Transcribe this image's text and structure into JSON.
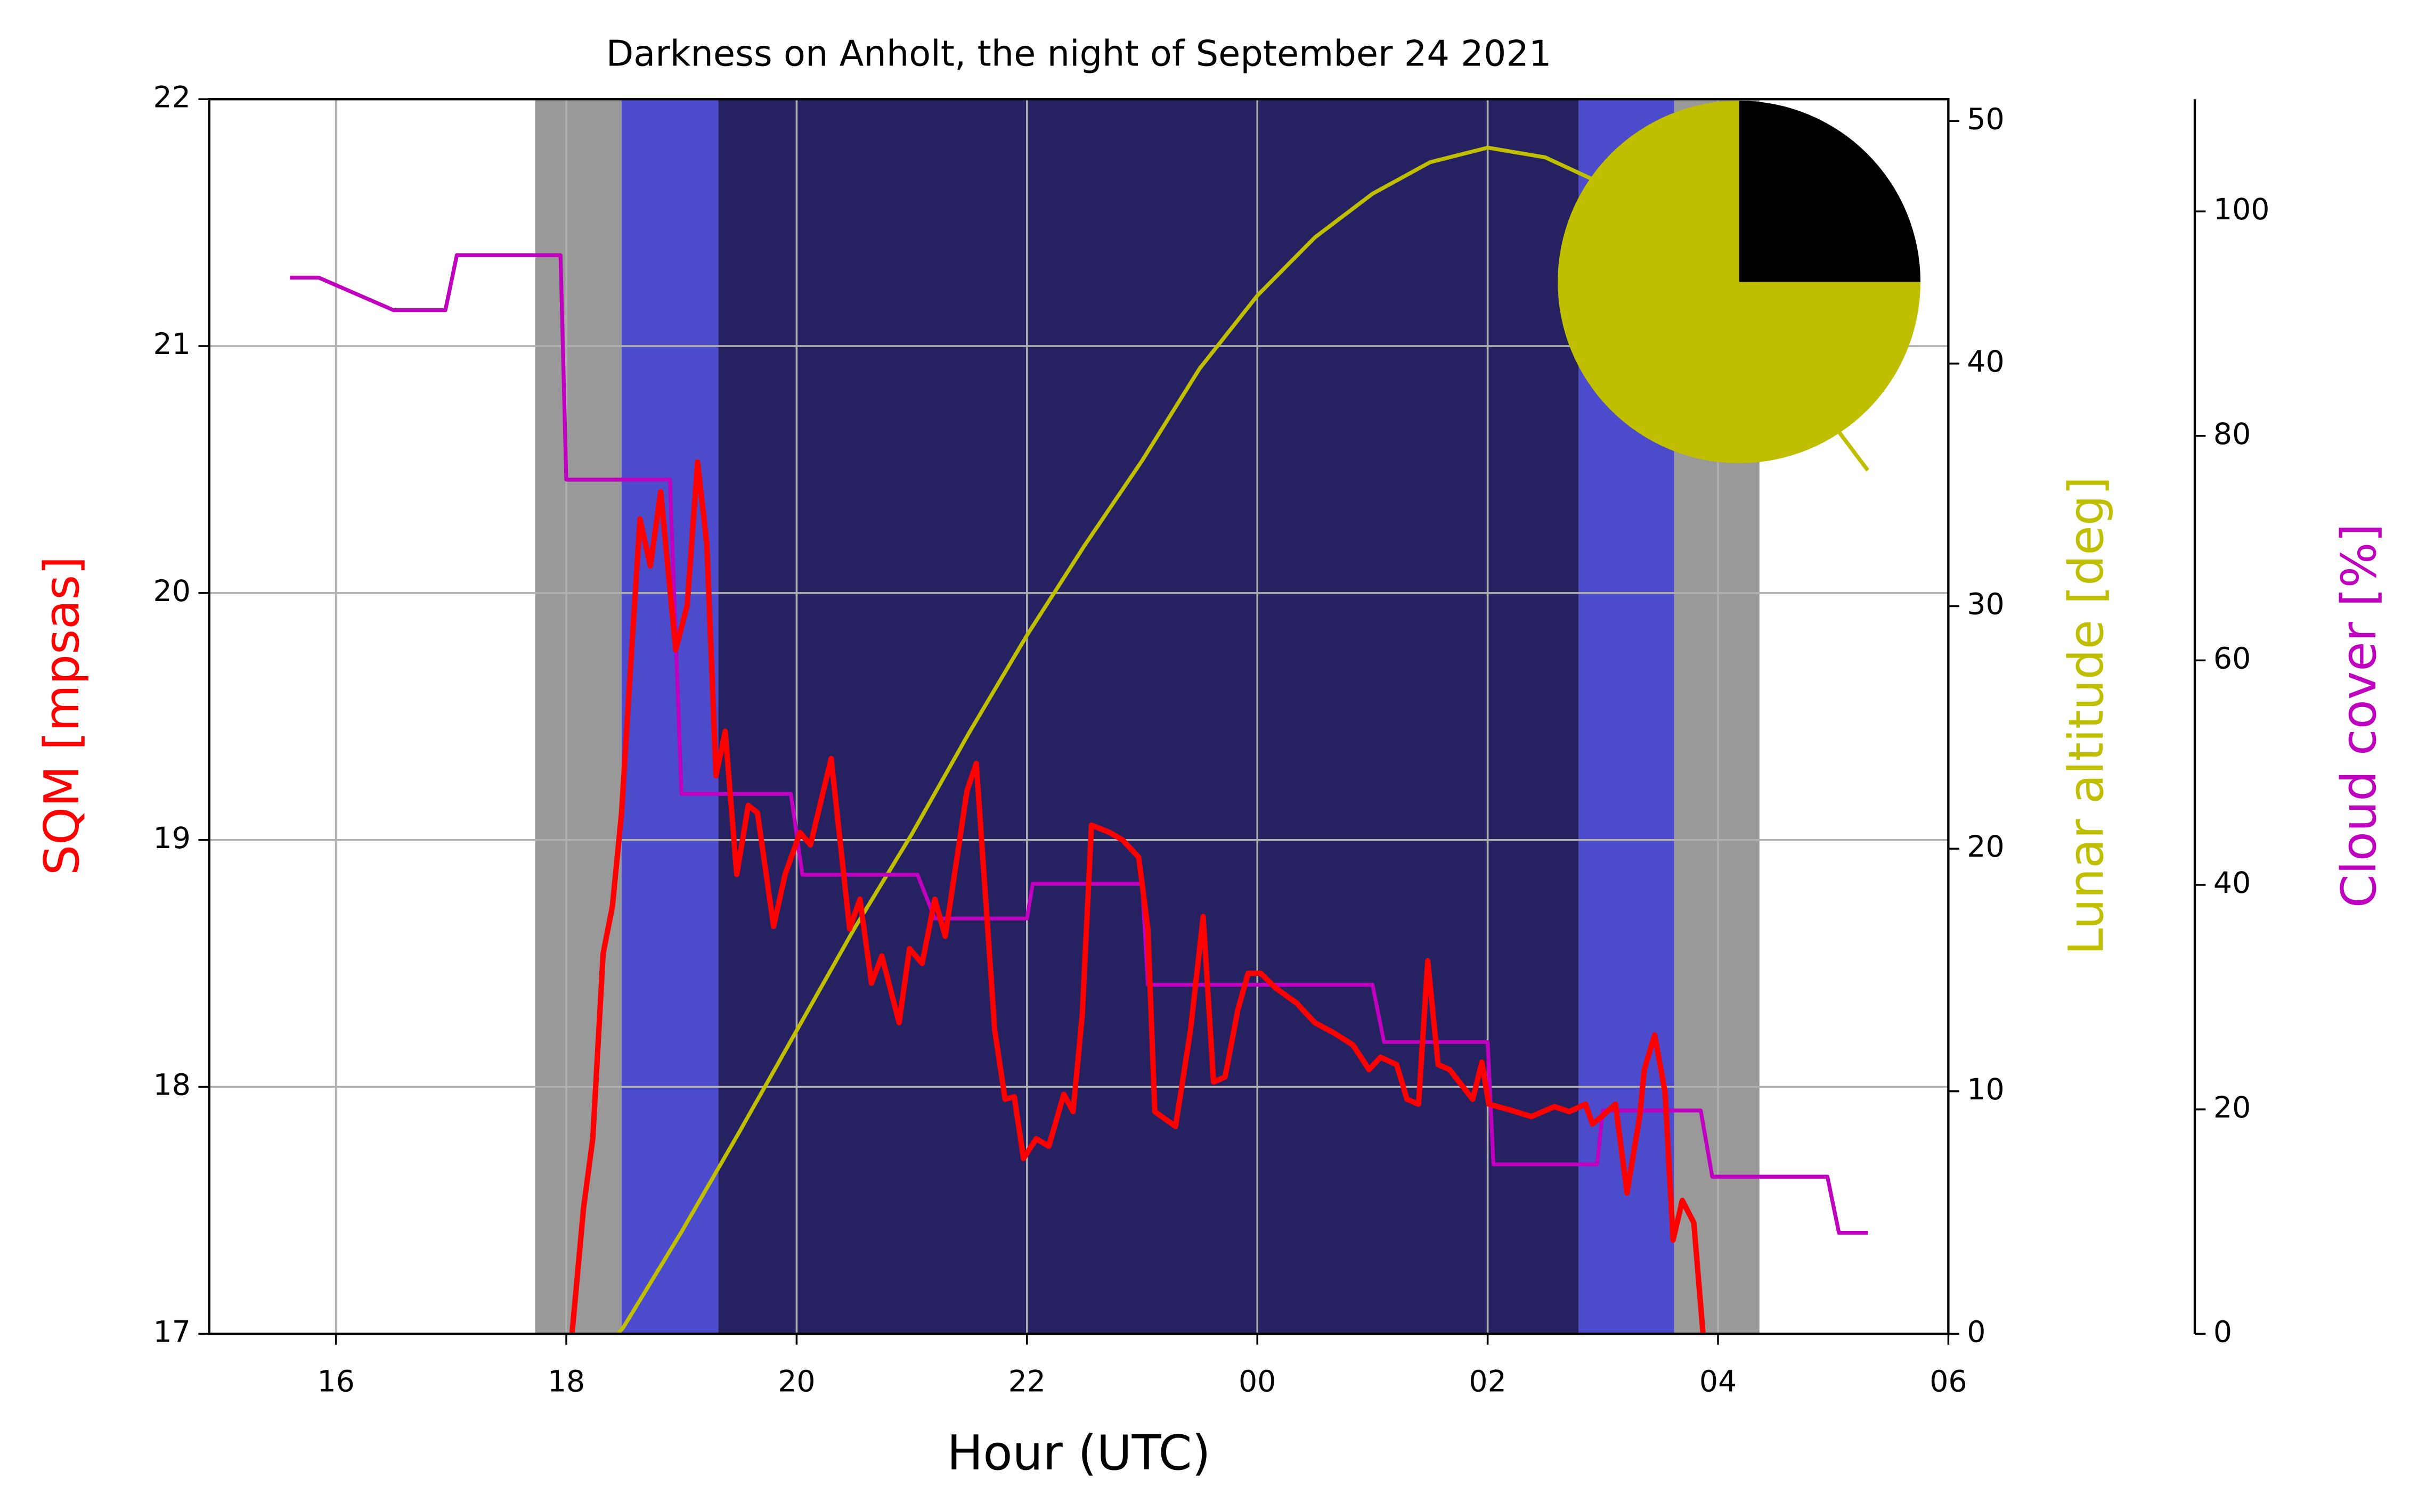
{
  "chart_data": {
    "type": "line",
    "title": "Darkness on Anholt, the night of September 24 2021",
    "xlabel": "Hour (UTC)",
    "ylabel": "SQM [mpsas]",
    "y2label": "Lunar altitude [deg]",
    "y3label": "Cloud cover [%]",
    "ylabel_color": "#ff0000",
    "y2label_color": "#bfbf00",
    "y3label_color": "#bf00bf",
    "xlim": [
      14.9,
      30
    ],
    "xticks": [
      16,
      18,
      20,
      22,
      {
        "value": 24,
        "label": "00"
      },
      {
        "value": 26,
        "label": "02"
      },
      {
        "value": 28,
        "label": "04"
      },
      {
        "value": 30,
        "label": "06"
      }
    ],
    "ylim": [
      17,
      22
    ],
    "yticks": [
      17,
      18,
      19,
      20,
      21,
      22
    ],
    "y2lim": [
      0,
      50.9
    ],
    "y2ticks": [
      0,
      10,
      20,
      30,
      40,
      50
    ],
    "y3lim": [
      0,
      110
    ],
    "y3ticks": [
      0,
      20,
      40,
      60,
      80,
      100
    ],
    "grid": true,
    "bands": [
      {
        "start": 17.73,
        "end": 18.48,
        "color": "#999999"
      },
      {
        "start": 18.48,
        "end": 19.32,
        "color": "#4b4bcc"
      },
      {
        "start": 19.32,
        "end": 26.79,
        "color": "#262262"
      },
      {
        "start": 26.79,
        "end": 27.62,
        "color": "#4b4bcc"
      },
      {
        "start": 27.62,
        "end": 28.36,
        "color": "#999999"
      }
    ],
    "series": [
      {
        "color": "#bfbf00",
        "axis": "y2",
        "x": [
          18.45,
          18.5,
          19,
          19.5,
          20,
          20.5,
          21,
          21.5,
          22,
          22.5,
          23,
          23.5,
          24,
          24.5,
          25,
          25.5,
          26,
          26.5,
          27,
          27.5,
          28,
          28.5,
          29,
          29.3
        ],
        "values": [
          0,
          0.3,
          4.2,
          8.3,
          12.5,
          16.7,
          20.6,
          24.8,
          28.8,
          32.5,
          36,
          39.8,
          42.8,
          45.2,
          47,
          48.3,
          48.9,
          48.5,
          47.4,
          45.6,
          43.3,
          40.5,
          37.5,
          35.6
        ]
      },
      {
        "color": "#bf00bf",
        "axis": "y3",
        "x": [
          15.6,
          15.85,
          16.5,
          16.95,
          17.05,
          17.95,
          18.0,
          18.9,
          19.0,
          19.95,
          20.05,
          21.05,
          21.2,
          22.0,
          22.05,
          23.0,
          23.05,
          25.0,
          25.1,
          26.0,
          26.05,
          26.95,
          27.0,
          27.85,
          27.95,
          28.95,
          29.05,
          29.3
        ],
        "values": [
          94.1,
          94.1,
          91.2,
          91.2,
          96.1,
          96.1,
          76.1,
          76.1,
          48.1,
          48.1,
          40.9,
          40.9,
          37.0,
          37.0,
          40.1,
          40.1,
          31.1,
          31.1,
          26.0,
          26.0,
          15.1,
          15.1,
          19.9,
          19.9,
          14.0,
          14.0,
          9.0,
          9.0
        ]
      },
      {
        "color": "#ff0000",
        "axis": "y",
        "x": [
          18.05,
          18.15,
          18.23,
          18.32,
          18.4,
          18.48,
          18.55,
          18.64,
          18.73,
          18.82,
          18.95,
          19.05,
          19.14,
          19.22,
          19.3,
          19.38,
          19.48,
          19.58,
          19.66,
          19.8,
          19.9,
          20.03,
          20.12,
          20.3,
          20.46,
          20.55,
          20.65,
          20.74,
          20.89,
          20.98,
          21.09,
          21.2,
          21.29,
          21.48,
          21.56,
          21.72,
          21.81,
          21.89,
          21.97,
          22.08,
          22.19,
          22.32,
          22.4,
          22.48,
          22.56,
          22.72,
          22.83,
          22.97,
          23.05,
          23.11,
          23.29,
          23.42,
          23.53,
          23.62,
          23.72,
          23.83,
          23.92,
          24.03,
          24.16,
          24.34,
          24.5,
          24.66,
          24.83,
          24.97,
          25.07,
          25.21,
          25.3,
          25.4,
          25.48,
          25.57,
          25.67,
          25.77,
          25.87,
          25.95,
          26.01,
          26.17,
          26.38,
          26.58,
          26.71,
          26.85,
          26.91,
          26.99,
          27.11,
          27.21,
          27.32,
          27.36,
          27.45,
          27.54,
          27.61,
          27.69,
          27.79,
          27.87
        ],
        "values": [
          17.0,
          17.51,
          17.79,
          18.54,
          18.73,
          19.11,
          19.64,
          20.3,
          20.11,
          20.41,
          19.77,
          19.95,
          20.53,
          20.2,
          19.26,
          19.44,
          18.86,
          19.14,
          19.11,
          18.65,
          18.86,
          19.03,
          18.98,
          19.33,
          18.64,
          18.76,
          18.42,
          18.53,
          18.26,
          18.56,
          18.5,
          18.76,
          18.61,
          19.2,
          19.31,
          18.23,
          17.95,
          17.96,
          17.71,
          17.79,
          17.76,
          17.97,
          17.9,
          18.29,
          19.06,
          19.03,
          19.0,
          18.93,
          18.64,
          17.9,
          17.84,
          18.23,
          18.69,
          18.02,
          18.04,
          18.31,
          18.46,
          18.46,
          18.4,
          18.34,
          18.26,
          18.22,
          18.17,
          18.07,
          18.12,
          18.09,
          17.95,
          17.93,
          18.51,
          18.09,
          18.07,
          18.01,
          17.95,
          18.1,
          17.93,
          17.91,
          17.88,
          17.92,
          17.9,
          17.93,
          17.85,
          17.88,
          17.93,
          17.57,
          17.88,
          18.07,
          18.21,
          17.98,
          17.38,
          17.54,
          17.45,
          17.0
        ]
      }
    ],
    "pie": {
      "values": [
        25,
        75
      ],
      "colors": [
        "#000000",
        "#bfbf00"
      ]
    }
  }
}
